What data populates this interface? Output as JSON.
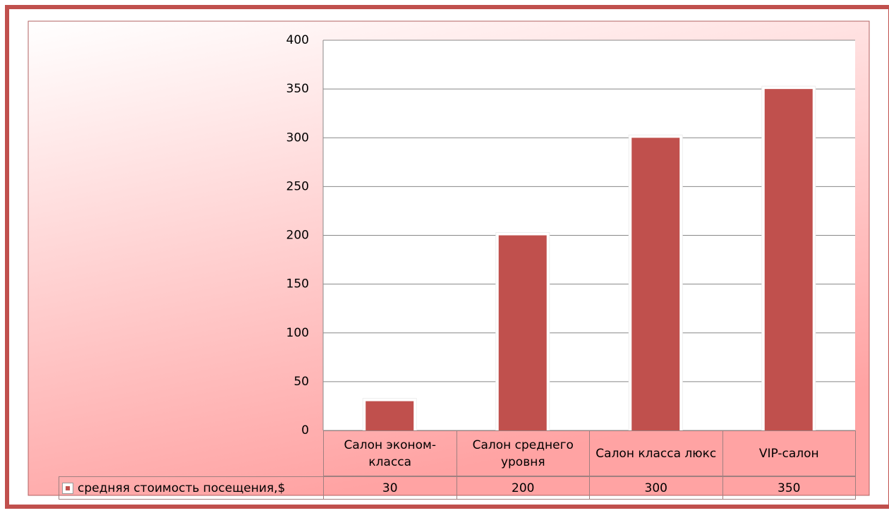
{
  "chart_data": {
    "type": "bar",
    "categories": [
      "Салон эконом-класса",
      "Салон среднего уровня",
      "Салон класса люкс",
      "VIP-салон"
    ],
    "series": [
      {
        "name": "средняя стоимость посещения,$",
        "color": "#c0504d",
        "values": [
          30,
          200,
          300,
          350
        ]
      }
    ],
    "ylim": [
      0,
      400
    ],
    "yticks": [
      0,
      50,
      100,
      150,
      200,
      250,
      300,
      350,
      400
    ],
    "grid": true,
    "data_table": true
  }
}
